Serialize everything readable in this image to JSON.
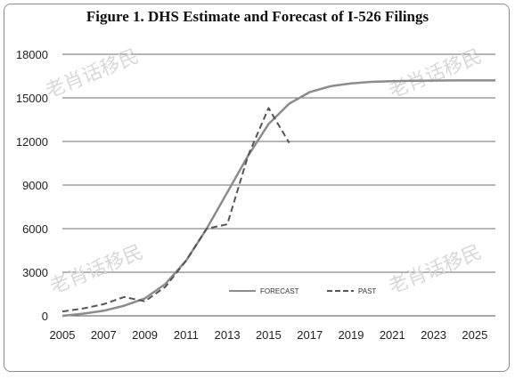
{
  "chart_data": {
    "type": "line",
    "title": "Figure 1.  DHS Estimate and Forecast of I-526 Filings",
    "xlabel": "",
    "ylabel": "",
    "xlim": [
      2005,
      2026
    ],
    "ylim": [
      0,
      18000
    ],
    "grid": true,
    "x_ticks": [
      "2005",
      "2007",
      "2009",
      "2011",
      "2013",
      "2015",
      "2017",
      "2019",
      "2021",
      "2023",
      "2025"
    ],
    "y_ticks": [
      "0",
      "3000",
      "6000",
      "9000",
      "12000",
      "15000",
      "18000"
    ],
    "legend_position": "bottom-center",
    "series": [
      {
        "name": "FORECAST",
        "style": "solid",
        "color": "#8c8c8c",
        "x": [
          2005,
          2006,
          2007,
          2008,
          2009,
          2010,
          2011,
          2012,
          2013,
          2014,
          2015,
          2016,
          2017,
          2018,
          2019,
          2020,
          2021,
          2022,
          2023,
          2024,
          2025,
          2026
        ],
        "y": [
          0,
          150,
          350,
          700,
          1200,
          2200,
          3800,
          6000,
          8500,
          11000,
          13200,
          14600,
          15400,
          15800,
          16000,
          16100,
          16150,
          16180,
          16190,
          16200,
          16200,
          16200
        ]
      },
      {
        "name": "PAST",
        "style": "dashed",
        "color": "#555555",
        "x": [
          2005,
          2006,
          2007,
          2008,
          2009,
          2010,
          2011,
          2012,
          2013,
          2014,
          2015,
          2016
        ],
        "y": [
          300,
          500,
          800,
          1300,
          1000,
          2000,
          3800,
          6000,
          6300,
          11000,
          14300,
          11900
        ]
      }
    ],
    "watermark": "老肖话移民"
  }
}
